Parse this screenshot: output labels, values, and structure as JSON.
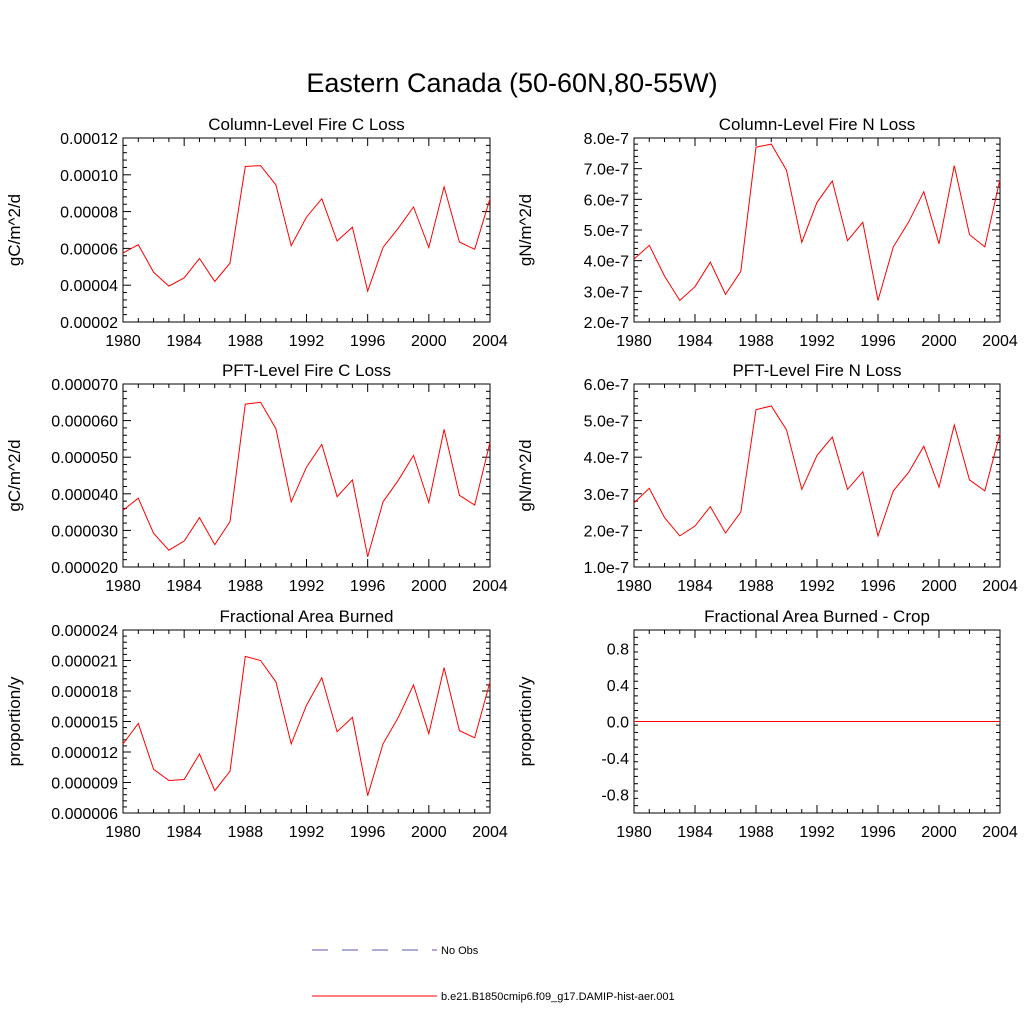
{
  "title": "Eastern Canada (50-60N,80-55W)",
  "legend": {
    "no_obs_label": "No Obs",
    "run_label": "b.e21.B1850cmip6.f09_g17.DAMIP-hist-aer.001",
    "no_obs_color": "#5a5ab4",
    "run_color": "#ff0000"
  },
  "chart_data": [
    {
      "type": "line",
      "title": "Column-Level Fire C Loss",
      "ylabel": "gC/m^2/d",
      "xlim": [
        1980,
        2004
      ],
      "ylim": [
        2e-05,
        0.00012
      ],
      "xticks": [
        "1980",
        "1984",
        "1988",
        "1992",
        "1996",
        "2000",
        "2004"
      ],
      "yticks": [
        "0.00002",
        "0.00004",
        "0.00006",
        "0.00008",
        "0.00010",
        "0.00012"
      ],
      "x": [
        1980,
        1981,
        1982,
        1983,
        1984,
        1985,
        1986,
        1987,
        1988,
        1989,
        1990,
        1991,
        1992,
        1993,
        1994,
        1995,
        1996,
        1997,
        1998,
        1999,
        2000,
        2001,
        2002,
        2003,
        2004
      ],
      "series": [
        {
          "values": [
            5.75e-05,
            6.2e-05,
            4.7e-05,
            3.95e-05,
            4.4e-05,
            5.45e-05,
            4.2e-05,
            5.2e-05,
            0.0001045,
            0.000105,
            9.45e-05,
            6.15e-05,
            7.7e-05,
            8.7e-05,
            6.4e-05,
            7.15e-05,
            3.68e-05,
            6.05e-05,
            7.1e-05,
            8.25e-05,
            6.05e-05,
            9.35e-05,
            6.35e-05,
            5.95e-05,
            8.7e-05
          ]
        }
      ]
    },
    {
      "type": "line",
      "title": "Column-Level Fire N Loss",
      "ylabel": "gN/m^2/d",
      "xlim": [
        1980,
        2004
      ],
      "ylim": [
        2e-07,
        8e-07
      ],
      "xticks": [
        "1980",
        "1984",
        "1988",
        "1992",
        "1996",
        "2000",
        "2004"
      ],
      "yticks": [
        "2.0e-7",
        "3.0e-7",
        "4.0e-7",
        "5.0e-7",
        "6.0e-7",
        "7.0e-7",
        "8.0e-7"
      ],
      "x": [
        1980,
        1981,
        1982,
        1983,
        1984,
        1985,
        1986,
        1987,
        1988,
        1989,
        1990,
        1991,
        1992,
        1993,
        1994,
        1995,
        1996,
        1997,
        1998,
        1999,
        2000,
        2001,
        2002,
        2003,
        2004
      ],
      "series": [
        {
          "values": [
            4.05e-07,
            4.5e-07,
            3.5e-07,
            2.7e-07,
            3.15e-07,
            3.95e-07,
            2.9e-07,
            3.65e-07,
            7.7e-07,
            7.8e-07,
            6.95e-07,
            4.6e-07,
            5.9e-07,
            6.6e-07,
            4.65e-07,
            5.25e-07,
            2.7e-07,
            4.45e-07,
            5.25e-07,
            6.25e-07,
            4.55e-07,
            7.1e-07,
            4.85e-07,
            4.45e-07,
            6.65e-07
          ]
        }
      ]
    },
    {
      "type": "line",
      "title": "PFT-Level Fire C Loss",
      "ylabel": "gC/m^2/d",
      "xlim": [
        1980,
        2004
      ],
      "ylim": [
        2e-05,
        7e-05
      ],
      "xticks": [
        "1980",
        "1984",
        "1988",
        "1992",
        "1996",
        "2000",
        "2004"
      ],
      "yticks": [
        "0.000020",
        "0.000030",
        "0.000040",
        "0.000050",
        "0.000060",
        "0.000070"
      ],
      "x": [
        1980,
        1981,
        1982,
        1983,
        1984,
        1985,
        1986,
        1987,
        1988,
        1989,
        1990,
        1991,
        1992,
        1993,
        1994,
        1995,
        1996,
        1997,
        1998,
        1999,
        2000,
        2001,
        2002,
        2003,
        2004
      ],
      "series": [
        {
          "values": [
            3.55e-05,
            3.88e-05,
            2.92e-05,
            2.46e-05,
            2.71e-05,
            3.35e-05,
            2.61e-05,
            3.24e-05,
            6.45e-05,
            6.5e-05,
            5.78e-05,
            3.78e-05,
            4.73e-05,
            5.35e-05,
            3.92e-05,
            4.38e-05,
            2.28e-05,
            3.78e-05,
            4.37e-05,
            5.05e-05,
            3.76e-05,
            5.76e-05,
            3.96e-05,
            3.69e-05,
            5.41e-05
          ]
        }
      ]
    },
    {
      "type": "line",
      "title": "PFT-Level Fire N Loss",
      "ylabel": "gN/m^2/d",
      "xlim": [
        1980,
        2004
      ],
      "ylim": [
        1e-07,
        6e-07
      ],
      "xticks": [
        "1980",
        "1984",
        "1988",
        "1992",
        "1996",
        "2000",
        "2004"
      ],
      "yticks": [
        "1.0e-7",
        "2.0e-7",
        "3.0e-7",
        "4.0e-7",
        "5.0e-7",
        "6.0e-7"
      ],
      "x": [
        1980,
        1981,
        1982,
        1983,
        1984,
        1985,
        1986,
        1987,
        1988,
        1989,
        1990,
        1991,
        1992,
        1993,
        1994,
        1995,
        1996,
        1997,
        1998,
        1999,
        2000,
        2001,
        2002,
        2003,
        2004
      ],
      "series": [
        {
          "values": [
            2.75e-07,
            3.15e-07,
            2.35e-07,
            1.85e-07,
            2.12e-07,
            2.65e-07,
            1.93e-07,
            2.5e-07,
            5.3e-07,
            5.4e-07,
            4.75e-07,
            3.12e-07,
            4.05e-07,
            4.55e-07,
            3.12e-07,
            3.6e-07,
            1.85e-07,
            3.08e-07,
            3.58e-07,
            4.3e-07,
            3.18e-07,
            4.88e-07,
            3.38e-07,
            3.08e-07,
            4.65e-07
          ]
        }
      ]
    },
    {
      "type": "line",
      "title": "Fractional Area Burned",
      "ylabel": "proportion/y",
      "xlim": [
        1980,
        2004
      ],
      "ylim": [
        6e-06,
        2.4e-05
      ],
      "xticks": [
        "1980",
        "1984",
        "1988",
        "1992",
        "1996",
        "2000",
        "2004"
      ],
      "yticks": [
        "0.000006",
        "0.000009",
        "0.000012",
        "0.000015",
        "0.000018",
        "0.000021",
        "0.000024"
      ],
      "x": [
        1980,
        1981,
        1982,
        1983,
        1984,
        1985,
        1986,
        1987,
        1988,
        1989,
        1990,
        1991,
        1992,
        1993,
        1994,
        1995,
        1996,
        1997,
        1998,
        1999,
        2000,
        2001,
        2002,
        2003,
        2004
      ],
      "series": [
        {
          "values": [
            1.28e-05,
            1.48e-05,
            1.03e-05,
            9.2e-06,
            9.3e-06,
            1.18e-05,
            8.2e-06,
            1.01e-05,
            2.14e-05,
            2.1e-05,
            1.89e-05,
            1.28e-05,
            1.66e-05,
            1.93e-05,
            1.4e-05,
            1.54e-05,
            7.7e-06,
            1.28e-05,
            1.54e-05,
            1.86e-05,
            1.38e-05,
            2.03e-05,
            1.41e-05,
            1.34e-05,
            1.89e-05
          ]
        }
      ]
    },
    {
      "type": "line",
      "title": "Fractional Area Burned - Crop",
      "ylabel": "proportion/y",
      "xlim": [
        1980,
        2004
      ],
      "ylim": [
        -1.0,
        1.0
      ],
      "xticks": [
        "1980",
        "1984",
        "1988",
        "1992",
        "1996",
        "2000",
        "2004"
      ],
      "yticks": [
        "-0.8",
        "-0.4",
        "0.0",
        "0.4",
        "0.8"
      ],
      "ytick_values": [
        -0.8,
        -0.4,
        0.0,
        0.4,
        0.8
      ],
      "x": [
        1980,
        2004
      ],
      "series": [
        {
          "values": [
            0.0,
            0.0
          ]
        }
      ]
    }
  ]
}
